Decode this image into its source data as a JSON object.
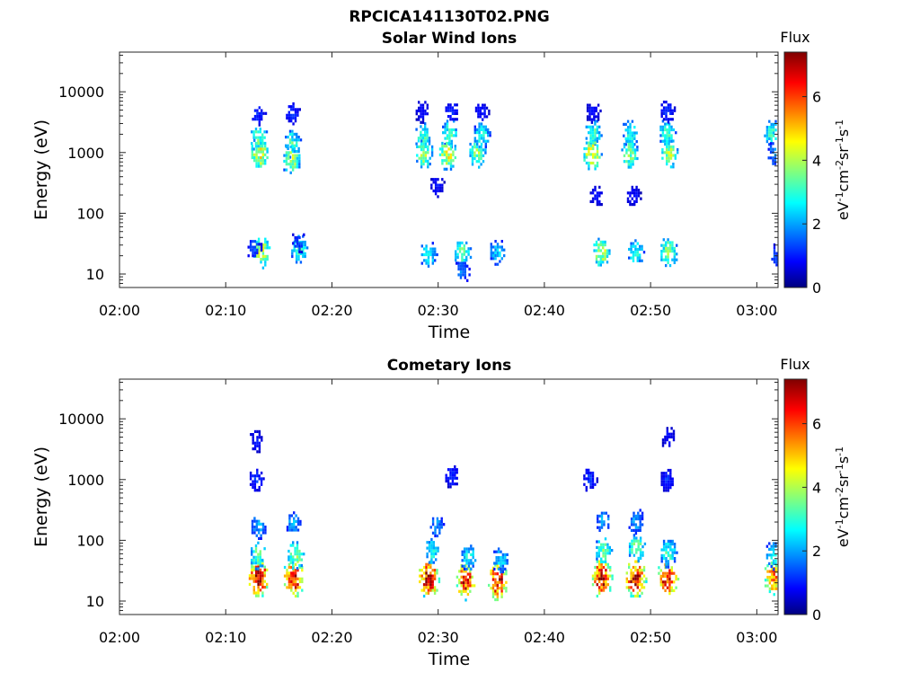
{
  "figure": {
    "title": "RPCICA141130T02.PNG"
  },
  "colors": {
    "colormap": [
      "#00007f",
      "#0000ff",
      "#007fff",
      "#00ffff",
      "#7fff7f",
      "#ffff00",
      "#ff7f00",
      "#ff0000",
      "#7f0000"
    ]
  },
  "chart_data": [
    {
      "type": "heatmap",
      "title": "Solar Wind Ions",
      "xlabel": "Time",
      "ylabel": "Energy (eV)",
      "xticks": [
        "02:00",
        "02:10",
        "02:20",
        "02:30",
        "02:40",
        "02:50",
        "03:00"
      ],
      "xlim": [
        "02:00",
        "03:02"
      ],
      "yticks": [
        "10",
        "100",
        "1000",
        "10000"
      ],
      "yscale": "log",
      "ylim": [
        6,
        45000
      ],
      "colorbar": {
        "label": "Flux",
        "units": "eV-1cm-2sr-1s-1",
        "ticks": [
          "0",
          "2",
          "4",
          "6"
        ],
        "range": [
          0,
          7.4
        ]
      },
      "blobs": [
        {
          "t": 13.0,
          "e": 1800,
          "v": 3.5
        },
        {
          "t": 13.1,
          "e": 1000,
          "v": 4.5
        },
        {
          "t": 13.0,
          "e": 4500,
          "v": 1.2
        },
        {
          "t": 16.2,
          "e": 1500,
          "v": 3.2
        },
        {
          "t": 16.1,
          "e": 800,
          "v": 4.0
        },
        {
          "t": 16.2,
          "e": 4700,
          "v": 1.2
        },
        {
          "t": 28.5,
          "e": 2000,
          "v": 3.2
        },
        {
          "t": 28.6,
          "e": 1000,
          "v": 4.0
        },
        {
          "t": 28.4,
          "e": 5000,
          "v": 1.0
        },
        {
          "t": 31.0,
          "e": 2200,
          "v": 3.2
        },
        {
          "t": 30.8,
          "e": 1000,
          "v": 4.5
        },
        {
          "t": 31.2,
          "e": 5000,
          "v": 1.2
        },
        {
          "t": 34.0,
          "e": 2000,
          "v": 3.0
        },
        {
          "t": 33.6,
          "e": 1000,
          "v": 3.8
        },
        {
          "t": 34.0,
          "e": 5000,
          "v": 1.0
        },
        {
          "t": 44.5,
          "e": 2200,
          "v": 3.2
        },
        {
          "t": 44.4,
          "e": 1000,
          "v": 4.8
        },
        {
          "t": 44.5,
          "e": 5000,
          "v": 1.0
        },
        {
          "t": 48.0,
          "e": 2200,
          "v": 3.0
        },
        {
          "t": 47.9,
          "e": 1000,
          "v": 3.8
        },
        {
          "t": 51.5,
          "e": 2200,
          "v": 3.2
        },
        {
          "t": 51.7,
          "e": 1000,
          "v": 4.0
        },
        {
          "t": 51.5,
          "e": 5000,
          "v": 1.2
        },
        {
          "t": 61.3,
          "e": 2200,
          "v": 3.0
        },
        {
          "t": 61.6,
          "e": 1000,
          "v": 2.0
        },
        {
          "t": 13.3,
          "e": 24,
          "v": 4.2
        },
        {
          "t": 12.6,
          "e": 28,
          "v": 1.5
        },
        {
          "t": 16.8,
          "e": 28,
          "v": 3.2
        },
        {
          "t": 16.8,
          "e": 36,
          "v": 1.5
        },
        {
          "t": 29.0,
          "e": 22,
          "v": 2.8
        },
        {
          "t": 32.2,
          "e": 24,
          "v": 3.5
        },
        {
          "t": 32.2,
          "e": 12,
          "v": 1.8
        },
        {
          "t": 35.5,
          "e": 24,
          "v": 2.5
        },
        {
          "t": 45.3,
          "e": 24,
          "v": 4.2
        },
        {
          "t": 48.5,
          "e": 24,
          "v": 3.0
        },
        {
          "t": 51.6,
          "e": 24,
          "v": 3.8
        },
        {
          "t": 61.7,
          "e": 22,
          "v": 1.5
        },
        {
          "t": 29.8,
          "e": 300,
          "v": 1.0
        },
        {
          "t": 44.8,
          "e": 200,
          "v": 1.0
        },
        {
          "t": 48.3,
          "e": 200,
          "v": 1.0
        }
      ]
    },
    {
      "type": "heatmap",
      "title": "Cometary Ions",
      "xlabel": "Time",
      "ylabel": "Energy (eV)",
      "xticks": [
        "02:00",
        "02:10",
        "02:20",
        "02:30",
        "02:40",
        "02:50",
        "03:00"
      ],
      "xlim": [
        "02:00",
        "03:02"
      ],
      "yticks": [
        "10",
        "100",
        "1000",
        "10000"
      ],
      "yscale": "log",
      "ylim": [
        6,
        45000
      ],
      "colorbar": {
        "label": "Flux",
        "units": "eV-1cm-2sr-1s-1",
        "ticks": [
          "0",
          "2",
          "4",
          "6"
        ],
        "range": [
          0,
          7.4
        ]
      },
      "blobs": [
        {
          "t": 13.0,
          "e": 25,
          "v": 7.2
        },
        {
          "t": 13.0,
          "e": 60,
          "v": 3.5
        },
        {
          "t": 13.0,
          "e": 180,
          "v": 2.2
        },
        {
          "t": 12.8,
          "e": 1050,
          "v": 1.3
        },
        {
          "t": 12.8,
          "e": 4600,
          "v": 1.0
        },
        {
          "t": 16.3,
          "e": 25,
          "v": 7.0
        },
        {
          "t": 16.5,
          "e": 60,
          "v": 3.8
        },
        {
          "t": 16.3,
          "e": 200,
          "v": 2.2
        },
        {
          "t": 29.0,
          "e": 25,
          "v": 7.0
        },
        {
          "t": 29.3,
          "e": 70,
          "v": 3.0
        },
        {
          "t": 29.8,
          "e": 180,
          "v": 2.0
        },
        {
          "t": 31.2,
          "e": 1200,
          "v": 1.2
        },
        {
          "t": 32.5,
          "e": 22,
          "v": 6.5
        },
        {
          "t": 32.8,
          "e": 55,
          "v": 2.8
        },
        {
          "t": 35.5,
          "e": 22,
          "v": 6.8
        },
        {
          "t": 35.8,
          "e": 50,
          "v": 2.5
        },
        {
          "t": 45.3,
          "e": 25,
          "v": 7.0
        },
        {
          "t": 45.5,
          "e": 70,
          "v": 3.5
        },
        {
          "t": 45.5,
          "e": 220,
          "v": 2.2
        },
        {
          "t": 44.2,
          "e": 1050,
          "v": 1.3
        },
        {
          "t": 48.5,
          "e": 25,
          "v": 7.0
        },
        {
          "t": 48.6,
          "e": 80,
          "v": 3.5
        },
        {
          "t": 48.5,
          "e": 220,
          "v": 2.2
        },
        {
          "t": 51.5,
          "e": 25,
          "v": 6.8
        },
        {
          "t": 51.6,
          "e": 65,
          "v": 3.2
        },
        {
          "t": 51.5,
          "e": 1050,
          "v": 1.2
        },
        {
          "t": 51.6,
          "e": 5200,
          "v": 1.0
        },
        {
          "t": 61.5,
          "e": 25,
          "v": 6.0
        },
        {
          "t": 61.5,
          "e": 60,
          "v": 3.0
        }
      ]
    }
  ]
}
